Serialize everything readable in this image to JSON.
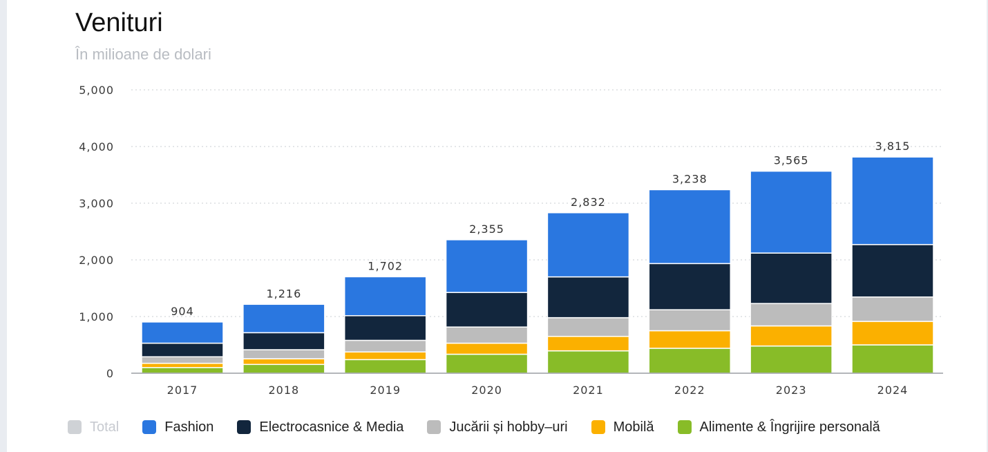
{
  "chart_data": {
    "type": "bar",
    "stacked": true,
    "title": "Venituri",
    "subtitle": "În milioane de dolari",
    "xlabel": "",
    "ylabel": "",
    "ylim": [
      0,
      5000
    ],
    "yticks": [
      0,
      1000,
      2000,
      3000,
      4000,
      5000
    ],
    "ytick_labels": [
      "0",
      "1,000",
      "2,000",
      "3,000",
      "4,000",
      "5,000"
    ],
    "grid": true,
    "legend_position": "bottom",
    "categories": [
      "2017",
      "2018",
      "2019",
      "2020",
      "2021",
      "2022",
      "2023",
      "2024"
    ],
    "totals": [
      904,
      1216,
      1702,
      2355,
      2832,
      3238,
      3565,
      3815
    ],
    "total_labels": [
      "904",
      "1,216",
      "1,702",
      "2,355",
      "2,832",
      "3,238",
      "3,565",
      "3,815"
    ],
    "total_legend": {
      "name": "Total",
      "color": "#cfd2d6",
      "visible": false
    },
    "series": [
      {
        "name": "Alimente & Îngrijire personală",
        "color": "#88bc28",
        "values": [
          100,
          155,
          240,
          335,
          395,
          440,
          480,
          500
        ]
      },
      {
        "name": "Mobilă",
        "color": "#fbb000",
        "values": [
          75,
          100,
          135,
          195,
          255,
          310,
          355,
          415
        ]
      },
      {
        "name": "Jucării și hobby–uri",
        "color": "#bcbcbc",
        "values": [
          115,
          160,
          205,
          285,
          330,
          370,
          395,
          430
        ]
      },
      {
        "name": "Electrocasnice & Media",
        "color": "#12263d",
        "values": [
          240,
          300,
          435,
          610,
          720,
          815,
          890,
          925
        ]
      },
      {
        "name": "Fashion",
        "color": "#2a77e0",
        "values": [
          374,
          501,
          687,
          930,
          1132,
          1303,
          1445,
          1545
        ]
      }
    ]
  },
  "legend_order": [
    "Fashion",
    "Electrocasnice & Media",
    "Jucării și hobby–uri",
    "Mobilă",
    "Alimente & Îngrijire personală"
  ]
}
